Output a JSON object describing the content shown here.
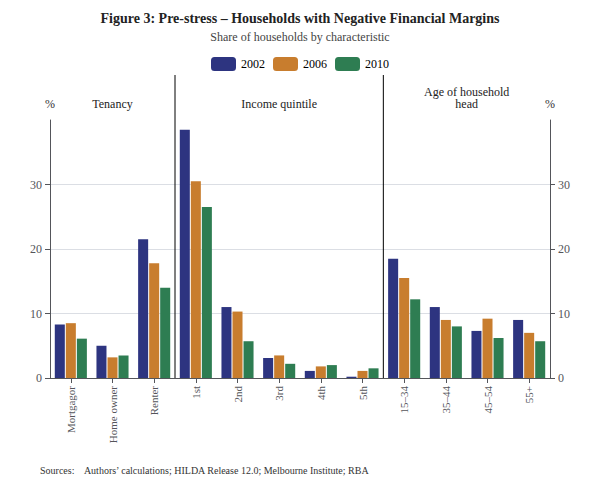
{
  "chart_data": {
    "type": "bar",
    "title": "Figure 3: Pre-stress – Households with Negative Financial Margins",
    "subtitle": "Share of households by characteristic",
    "categories": [
      "Mortgagor",
      "Home owner",
      "Renter",
      "1st",
      "2nd",
      "3rd",
      "4th",
      "5th",
      "15–34",
      "35–44",
      "45–54",
      "55+"
    ],
    "series": [
      {
        "name": "2002",
        "color": "#2d3480",
        "values": [
          8.3,
          5.0,
          21.5,
          38.5,
          11.0,
          3.1,
          1.1,
          0.2,
          18.5,
          11.0,
          7.3,
          9.0
        ]
      },
      {
        "name": "2006",
        "color": "#c87d2e",
        "values": [
          8.5,
          3.2,
          17.8,
          30.5,
          10.3,
          3.5,
          1.8,
          1.1,
          15.5,
          9.0,
          9.2,
          7.0
        ]
      },
      {
        "name": "2010",
        "color": "#2e7d52",
        "values": [
          6.1,
          3.5,
          14.0,
          26.5,
          5.7,
          2.2,
          2.0,
          1.5,
          12.2,
          8.0,
          6.2,
          5.7
        ]
      }
    ],
    "sections": [
      {
        "label": "Tenancy",
        "categories": [
          "Mortgagor",
          "Home owner",
          "Renter"
        ]
      },
      {
        "label": "Income quintile",
        "categories": [
          "1st",
          "2nd",
          "3rd",
          "4th",
          "5th"
        ]
      },
      {
        "label": "Age of household\nhead",
        "categories": [
          "15–34",
          "35–44",
          "45–54",
          "55+"
        ]
      }
    ],
    "ylabel": "%",
    "ylim": [
      0,
      40
    ],
    "yticks": [
      0,
      10,
      20,
      30
    ],
    "y2label": "%",
    "y2lim": [
      0,
      40
    ],
    "y2ticks": [
      0,
      10,
      20,
      30
    ],
    "footnote": "Sources:    Authors’ calculations; HILDA Release 12.0; Melbourne Institute; RBA",
    "grid": true,
    "legend": "top"
  }
}
